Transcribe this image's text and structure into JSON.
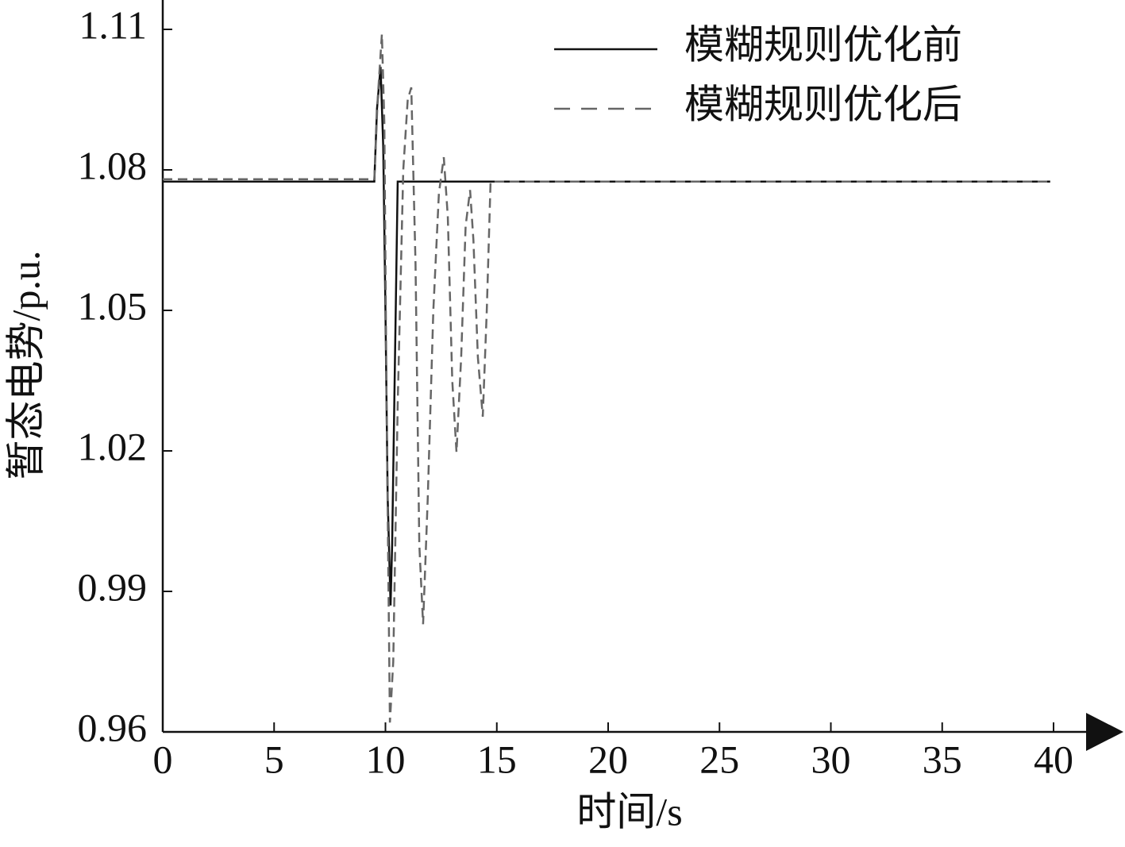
{
  "chart_data": {
    "type": "line",
    "x_label": "时间/s",
    "y_label": "暂态电势/p.u.",
    "xlim": [
      0,
      40
    ],
    "xticks": [
      0,
      5,
      10,
      15,
      20,
      25,
      30,
      35,
      40
    ],
    "ylim": [
      0.96,
      1.11
    ],
    "yticks": [
      {
        "value": 0.96,
        "label": "0.96"
      },
      {
        "value": 0.99,
        "label": "0.99"
      },
      {
        "value": 1.02,
        "label": "1.02"
      },
      {
        "value": 1.05,
        "label": "1.05"
      },
      {
        "value": 1.08,
        "label": "1.08"
      },
      {
        "value": 1.11,
        "label": "1.11"
      }
    ],
    "grid": false,
    "legend": "upper right",
    "series": [
      {
        "name": "模糊规则优化前",
        "color": "#111111",
        "dash": false,
        "x": [
          0,
          9.5,
          9.62,
          9.78,
          9.9,
          10.0,
          10.1,
          10.23,
          10.3,
          10.55,
          39.85
        ],
        "values": [
          1.0775,
          1.0775,
          1.093,
          1.102,
          1.085,
          1.05,
          1.01,
          0.987,
          1.0,
          1.0775,
          1.0775
        ]
      },
      {
        "name": "模糊规则优化后",
        "color": "#666666",
        "dash": true,
        "x": [
          0,
          9.5,
          9.65,
          9.84,
          9.95,
          10.05,
          10.2,
          10.35,
          10.55,
          10.8,
          11.0,
          11.16,
          11.35,
          11.52,
          11.69,
          11.9,
          12.15,
          12.4,
          12.62,
          12.8,
          13.0,
          13.19,
          13.4,
          13.6,
          13.8,
          13.95,
          14.15,
          14.37,
          14.55,
          14.72,
          39.85
        ],
        "values": [
          1.078,
          1.078,
          1.095,
          1.109,
          1.09,
          1.03,
          0.962,
          0.975,
          1.03,
          1.08,
          1.095,
          1.0976,
          1.06,
          1.0,
          0.983,
          1.01,
          1.05,
          1.075,
          1.0827,
          1.07,
          1.035,
          1.0197,
          1.04,
          1.068,
          1.0757,
          1.065,
          1.04,
          1.0273,
          1.05,
          1.0775,
          1.0775
        ]
      }
    ]
  }
}
